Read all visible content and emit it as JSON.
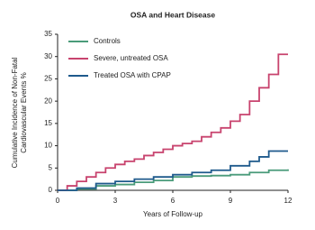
{
  "chart_data": {
    "type": "line",
    "step": "post",
    "title": "OSA and Heart Disease",
    "xlabel": "Years of Follow-up",
    "ylabel": [
      "Cumulative Incidence of Non-Fatal",
      "Cardiovascular Events %"
    ],
    "xlim": [
      0,
      12
    ],
    "xticks": [
      0,
      3,
      6,
      9,
      12
    ],
    "ylim": [
      0,
      35
    ],
    "yticks": [
      0,
      5,
      10,
      15,
      20,
      25,
      30,
      35
    ],
    "grid": false,
    "legend": "upper left",
    "series": [
      {
        "name": "Controls",
        "color": "#4a9b7a",
        "x": [
          0,
          1,
          2,
          3,
          4,
          5,
          6,
          7,
          8,
          9,
          10,
          11,
          12
        ],
        "values": [
          0,
          0.3,
          1,
          1.3,
          1.8,
          2.2,
          3,
          3.2,
          3.3,
          3.5,
          4,
          4.5,
          4.7
        ]
      },
      {
        "name": "Severe, untreated OSA",
        "color": "#c8436e",
        "x": [
          0,
          0.5,
          1,
          1.5,
          2,
          2.5,
          3,
          3.5,
          4,
          4.5,
          5,
          5.5,
          6,
          6.5,
          7,
          7.5,
          8,
          8.5,
          9,
          9.5,
          10,
          10.5,
          11,
          11.5,
          12
        ],
        "values": [
          0,
          1,
          2,
          3,
          4,
          5,
          5.8,
          6.5,
          7,
          7.8,
          8.5,
          9.2,
          10,
          10.5,
          11,
          12,
          13,
          14,
          15.5,
          17,
          20,
          23,
          26,
          30.5,
          30.5
        ]
      },
      {
        "name": "Treated OSA with CPAP",
        "color": "#1f5a8c",
        "x": [
          0,
          1,
          2,
          3,
          4,
          5,
          6,
          7,
          8,
          9,
          10,
          10.5,
          11,
          12
        ],
        "values": [
          0,
          0.5,
          1.5,
          2,
          2.5,
          3,
          3.5,
          4,
          4.5,
          5.5,
          6.5,
          7.5,
          8.8,
          8.8
        ]
      }
    ]
  }
}
